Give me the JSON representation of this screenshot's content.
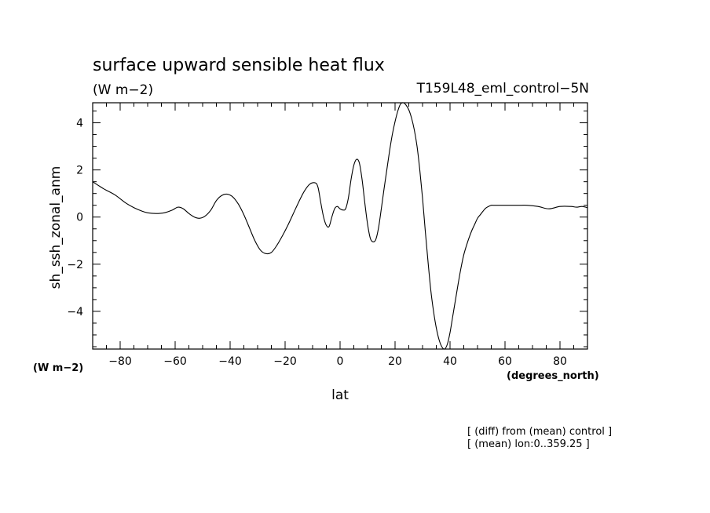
{
  "chart_data": {
    "type": "line",
    "title": "surface upward sensible heat flux",
    "units": "(W m−2)",
    "run_label": "T159L48_eml_control−5N",
    "ylabel": "sh_ssh_zonal_anm",
    "xlabel": "lat",
    "x_units": "(degrees_north)",
    "y_units": "(W m−2)",
    "xlim": [
      -90,
      90
    ],
    "ylim": [
      -5.6,
      4.85
    ],
    "xticks": [
      -80,
      -60,
      -40,
      -20,
      0,
      20,
      40,
      60,
      80
    ],
    "xtick_labels": [
      "−80",
      "−60",
      "−40",
      "−20",
      "0",
      "20",
      "40",
      "60",
      "80"
    ],
    "yticks": [
      -4,
      -2,
      0,
      2,
      4
    ],
    "ytick_labels": [
      "−4",
      "−2",
      "0",
      "2",
      "4"
    ],
    "grid": false,
    "annotations": [
      "[ (diff) from (mean) control ]",
      "[ (mean) lon:0..359.25 ]"
    ],
    "series": [
      {
        "x": [
          -90,
          -86,
          -82,
          -78,
          -75,
          -72,
          -70,
          -67,
          -64,
          -61,
          -59,
          -57,
          -55,
          -53,
          -51,
          -49,
          -47,
          -45,
          -43,
          -41,
          -39,
          -37,
          -35,
          -33,
          -31,
          -29,
          -27,
          -25,
          -23,
          -21,
          -19,
          -17,
          -15,
          -13,
          -11,
          -9,
          -8,
          -7,
          -6,
          -5,
          -4,
          -3,
          -2,
          -1,
          0,
          1,
          2,
          3,
          4,
          5,
          6,
          7,
          8,
          9,
          10,
          11,
          12,
          13,
          14,
          15,
          16,
          17,
          18,
          19,
          20,
          21,
          22,
          23,
          24,
          25,
          26,
          27,
          28,
          29,
          30,
          31,
          32,
          33,
          34,
          35,
          36,
          37,
          38,
          39,
          40,
          41,
          42,
          43,
          44,
          45,
          46,
          47,
          48,
          49,
          50,
          51,
          52,
          53,
          54,
          55,
          56,
          58,
          60,
          62,
          65,
          68,
          72,
          76,
          80,
          84,
          86,
          88,
          90
        ],
        "y": [
          1.5,
          1.2,
          0.95,
          0.6,
          0.4,
          0.25,
          0.18,
          0.15,
          0.18,
          0.3,
          0.42,
          0.35,
          0.15,
          0.0,
          -0.05,
          0.05,
          0.3,
          0.7,
          0.92,
          0.97,
          0.85,
          0.55,
          0.1,
          -0.45,
          -1.0,
          -1.4,
          -1.55,
          -1.5,
          -1.2,
          -0.8,
          -0.35,
          0.15,
          0.65,
          1.1,
          1.4,
          1.45,
          1.25,
          0.6,
          0.0,
          -0.35,
          -0.4,
          0.0,
          0.35,
          0.45,
          0.35,
          0.3,
          0.35,
          0.8,
          1.6,
          2.2,
          2.45,
          2.3,
          1.6,
          0.6,
          -0.3,
          -0.9,
          -1.05,
          -0.95,
          -0.45,
          0.35,
          1.2,
          2.0,
          2.8,
          3.5,
          4.05,
          4.5,
          4.8,
          4.85,
          4.75,
          4.55,
          4.2,
          3.7,
          3.0,
          2.0,
          0.8,
          -0.6,
          -1.9,
          -3.1,
          -4.0,
          -4.7,
          -5.2,
          -5.5,
          -5.6,
          -5.4,
          -4.9,
          -4.2,
          -3.5,
          -2.8,
          -2.15,
          -1.6,
          -1.2,
          -0.85,
          -0.55,
          -0.3,
          -0.05,
          0.1,
          0.25,
          0.38,
          0.45,
          0.5,
          0.5,
          0.5,
          0.5,
          0.5,
          0.5,
          0.5,
          0.45,
          0.35,
          0.45,
          0.45,
          0.42,
          0.45,
          0.4
        ]
      }
    ]
  }
}
